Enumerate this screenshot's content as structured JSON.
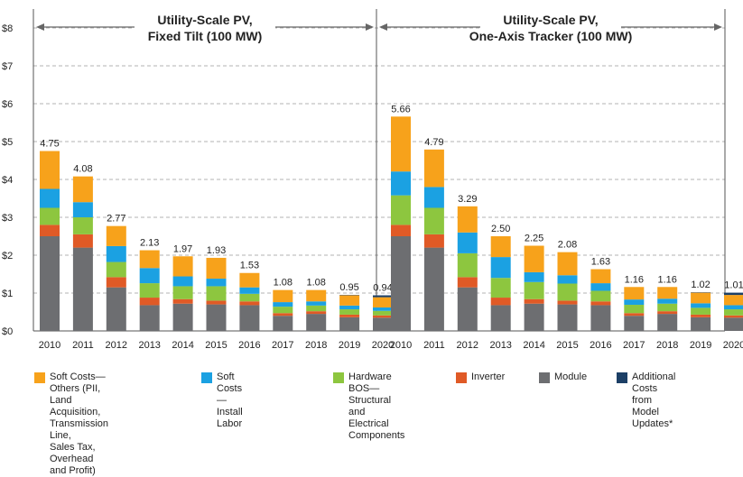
{
  "chart_data": {
    "type": "bar",
    "stacked": true,
    "y_ticks": [
      "$0",
      "$1",
      "$2",
      "$3",
      "$4",
      "$5",
      "$6",
      "$7",
      "$8"
    ],
    "ylim": [
      0,
      8.5
    ],
    "grid": true,
    "legend_position": "bottom",
    "series": [
      {
        "name": "Module",
        "color": "#6d6e71"
      },
      {
        "name": "Inverter",
        "color": "#e05a26"
      },
      {
        "name": "Hardware BOS—Structural and Electrical Components",
        "color": "#8dc63f"
      },
      {
        "name": "Soft Costs—Install Labor",
        "color": "#1ba1e2"
      },
      {
        "name": "Soft Costs—Others (PII, Land Acquisition, Transmission Line, Sales Tax, Overhead and Profit)",
        "color": "#f7a21b"
      },
      {
        "name": "Additional Costs from Model Updates*",
        "color": "#1c3f66"
      }
    ],
    "panels": [
      {
        "title_line1": "Utility-Scale PV,",
        "title_line2": "Fixed Tilt (100 MW)",
        "categories": [
          "2010",
          "2011",
          "2012",
          "2013",
          "2014",
          "2015",
          "2016",
          "2017",
          "2018",
          "2019",
          "2020"
        ],
        "totals": [
          "4.75",
          "4.08",
          "2.77",
          "2.13",
          "1.97",
          "1.93",
          "1.53",
          "1.08",
          "1.08",
          "0.95",
          "0.94"
        ],
        "stacks": [
          [
            2.5,
            0.3,
            0.45,
            0.5,
            1.0,
            0.0
          ],
          [
            2.2,
            0.35,
            0.45,
            0.4,
            0.68,
            0.0
          ],
          [
            1.15,
            0.27,
            0.4,
            0.42,
            0.53,
            0.0
          ],
          [
            0.68,
            0.2,
            0.38,
            0.4,
            0.47,
            0.0
          ],
          [
            0.72,
            0.12,
            0.34,
            0.26,
            0.53,
            0.0
          ],
          [
            0.7,
            0.1,
            0.38,
            0.2,
            0.55,
            0.0
          ],
          [
            0.68,
            0.1,
            0.2,
            0.17,
            0.38,
            0.0
          ],
          [
            0.4,
            0.07,
            0.17,
            0.12,
            0.32,
            0.0
          ],
          [
            0.45,
            0.07,
            0.15,
            0.11,
            0.3,
            0.0
          ],
          [
            0.36,
            0.07,
            0.14,
            0.1,
            0.27,
            0.01
          ],
          [
            0.35,
            0.06,
            0.12,
            0.09,
            0.27,
            0.05
          ]
        ]
      },
      {
        "title_line1": "Utility-Scale PV,",
        "title_line2": "One-Axis Tracker (100 MW)",
        "categories": [
          "2010",
          "2011",
          "2012",
          "2013",
          "2014",
          "2015",
          "2016",
          "2017",
          "2018",
          "2019",
          "2020"
        ],
        "totals": [
          "5.66",
          "4.79",
          "3.29",
          "2.50",
          "2.25",
          "2.08",
          "1.63",
          "1.16",
          "1.16",
          "1.02",
          "1.01"
        ],
        "stacks": [
          [
            2.5,
            0.3,
            0.78,
            0.63,
            1.45,
            0.0
          ],
          [
            2.2,
            0.35,
            0.7,
            0.55,
            0.99,
            0.0
          ],
          [
            1.15,
            0.27,
            0.63,
            0.55,
            0.69,
            0.0
          ],
          [
            0.68,
            0.2,
            0.52,
            0.55,
            0.55,
            0.0
          ],
          [
            0.72,
            0.12,
            0.45,
            0.26,
            0.7,
            0.0
          ],
          [
            0.7,
            0.1,
            0.45,
            0.22,
            0.61,
            0.0
          ],
          [
            0.68,
            0.1,
            0.28,
            0.2,
            0.37,
            0.0
          ],
          [
            0.4,
            0.07,
            0.22,
            0.14,
            0.33,
            0.0
          ],
          [
            0.45,
            0.07,
            0.2,
            0.13,
            0.31,
            0.0
          ],
          [
            0.36,
            0.07,
            0.18,
            0.12,
            0.28,
            0.01
          ],
          [
            0.35,
            0.06,
            0.16,
            0.11,
            0.27,
            0.06
          ]
        ]
      }
    ],
    "legend": [
      {
        "label": "Soft Costs—Others (PII, Land\nAcquisition, Transmission Line,\nSales Tax, Overhead and Profit)",
        "color": "#f7a21b"
      },
      {
        "label": "Soft Costs—Install\nLabor",
        "color": "#1ba1e2"
      },
      {
        "label": "Hardware\nBOS—Structural\nand Electrical\nComponents",
        "color": "#8dc63f"
      },
      {
        "label": "Inverter",
        "color": "#e05a26"
      },
      {
        "label": "Module",
        "color": "#6d6e71"
      },
      {
        "label": "Additional Costs\nfrom Model\nUpdates*",
        "color": "#1c3f66"
      }
    ]
  }
}
